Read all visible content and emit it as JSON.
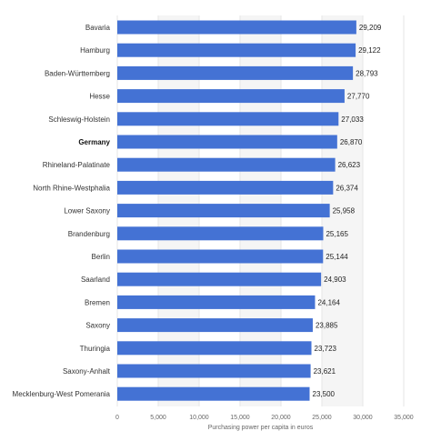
{
  "chart_data": {
    "type": "bar",
    "orientation": "horizontal",
    "categories": [
      "Bavaria",
      "Hamburg",
      "Baden-Württemberg",
      "Hesse",
      "Schleswig-Holstein",
      "Germany",
      "Rhineland-Palatinate",
      "North Rhine-Westphalia",
      "Lower Saxony",
      "Brandenburg",
      "Berlin",
      "Saarland",
      "Bremen",
      "Saxony",
      "Thuringia",
      "Saxony-Anhalt",
      "Mecklenburg-West Pomerania"
    ],
    "values": [
      29209,
      29122,
      28793,
      27770,
      27033,
      26870,
      26623,
      26374,
      25958,
      25165,
      25144,
      24903,
      24164,
      23885,
      23723,
      23621,
      23500
    ],
    "value_labels": [
      "29,209",
      "29,122",
      "28,793",
      "27,770",
      "27,033",
      "26,870",
      "26,623",
      "26,374",
      "25,958",
      "25,165",
      "25,144",
      "24,903",
      "24,164",
      "23,885",
      "23,723",
      "23,621",
      "23,500"
    ],
    "highlighted_category": "Germany",
    "xlabel": "Purchasing power per capita in euros",
    "ylabel": "",
    "xlim": [
      0,
      35000
    ],
    "xticks": [
      0,
      5000,
      10000,
      15000,
      20000,
      25000,
      30000,
      35000
    ],
    "xtick_labels": [
      "0",
      "5,000",
      "10,000",
      "15,000",
      "20,000",
      "25,000",
      "30,000",
      "35,000"
    ],
    "grid": true,
    "alternating_row_bands": true,
    "colors": {
      "bar": "#4472d4",
      "band": "#f5f5f5",
      "grid": "#e6e6e6"
    }
  }
}
